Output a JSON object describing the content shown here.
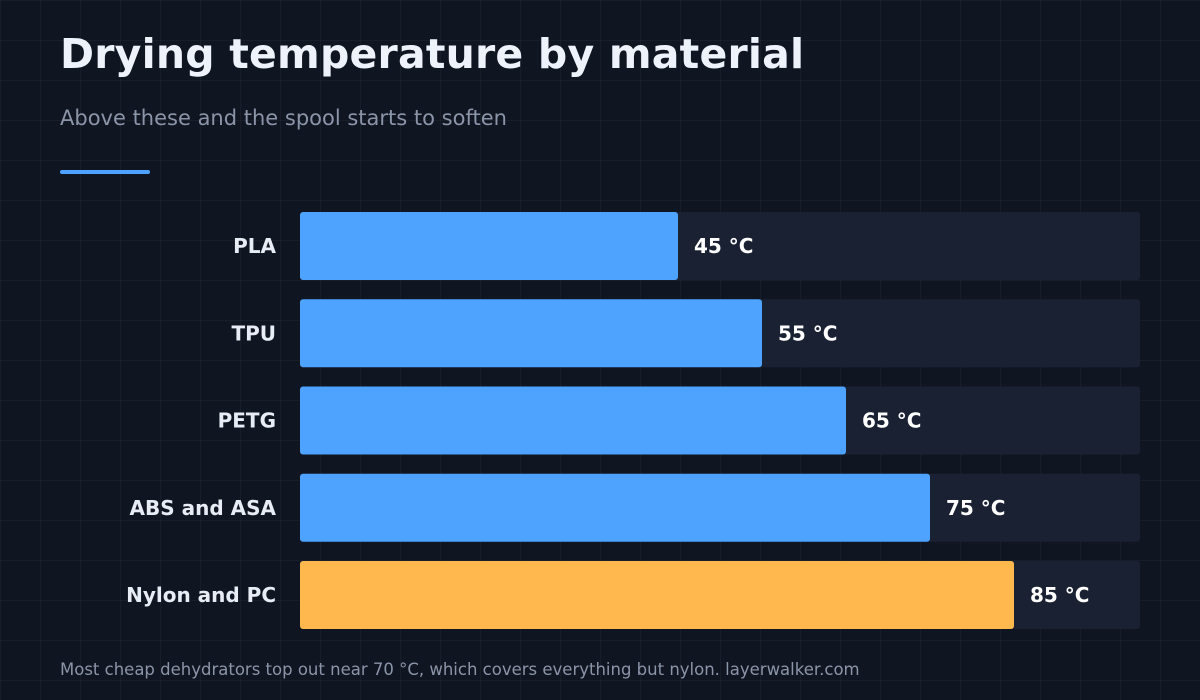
{
  "title": "Drying temperature by material",
  "subtitle": "Above these and the spool starts to soften",
  "footer": "Most cheap dehydrators top out near 70 °C, which covers everything but nylon. layerwalker.com",
  "colors": {
    "background": "#101522",
    "track": "#1a2133",
    "bar": "#4da3ff",
    "highlight": "#ffb84d",
    "accent_rule": "#4da3ff",
    "category_label": "#e8ecf4",
    "value_label": "#ffffff"
  },
  "chart_data": {
    "type": "bar",
    "orientation": "horizontal",
    "categories": [
      "PLA",
      "TPU",
      "PETG",
      "ABS and ASA",
      "Nylon and PC"
    ],
    "values": [
      45,
      55,
      65,
      75,
      85
    ],
    "value_labels": [
      "45 °C",
      "55 °C",
      "65 °C",
      "75 °C",
      "85 °C"
    ],
    "highlighted_category": "Nylon and PC",
    "xlim": [
      0,
      100
    ],
    "title": "Drying temperature by material",
    "subtitle": "Above these and the spool starts to soften",
    "xlabel": "",
    "ylabel": "",
    "grid": false,
    "legend": "none"
  }
}
